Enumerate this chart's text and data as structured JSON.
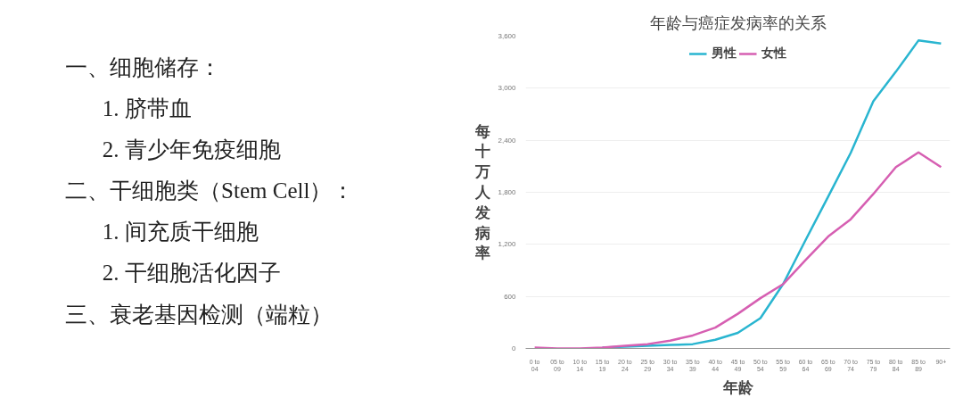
{
  "chart_data": [
    {
      "type": "other",
      "annotations": [
        "一、细胞储存：",
        "1. 脐带血",
        "2. 青少年免疫细胞",
        "二、干细胞类（Stem Cell）：",
        "1. 间充质干细胞",
        "2. 干细胞活化因子",
        "三、衰老基因检测（端粒）"
      ]
    },
    {
      "type": "line",
      "title": "年龄与癌症发病率的关系",
      "xlabel": "年龄",
      "ylabel": "每十万人发病率",
      "categories": [
        "0 to 04",
        "05 to 09",
        "10 to 14",
        "15 to 19",
        "20 to 24",
        "25 to 29",
        "30 to 34",
        "35 to 39",
        "40 to 44",
        "45 to 49",
        "50 to 54",
        "55 to 59",
        "60 to 64",
        "65 to 69",
        "70 to 74",
        "75 to 79",
        "80 to 84",
        "85 to 89",
        "90+"
      ],
      "series": [
        {
          "name": "男性",
          "color": "#29b5d0",
          "values": [
            null,
            null,
            null,
            10,
            20,
            30,
            40,
            50,
            100,
            180,
            350,
            740,
            1250,
            1750,
            2255,
            2850,
            3190,
            3550,
            3515
          ]
        },
        {
          "name": "女性",
          "color": "#d65fb2",
          "values": [
            10,
            0,
            0,
            10,
            30,
            50,
            90,
            150,
            240,
            400,
            580,
            740,
            1020,
            1290,
            1490,
            1780,
            2090,
            2260,
            2090
          ]
        }
      ],
      "ylim": [
        0,
        3600
      ],
      "yticks": [
        0,
        600,
        {
          "value": 1200,
          "label": "1,200"
        },
        {
          "value": 1800,
          "label": "1,800"
        },
        {
          "value": 2400,
          "label": "2,400"
        },
        {
          "value": 3000,
          "label": "3,000"
        },
        {
          "value": 3600,
          "label": "3,600"
        }
      ],
      "grid": "y",
      "legend": "top",
      "marker": "none",
      "line_style": "solid"
    }
  ]
}
